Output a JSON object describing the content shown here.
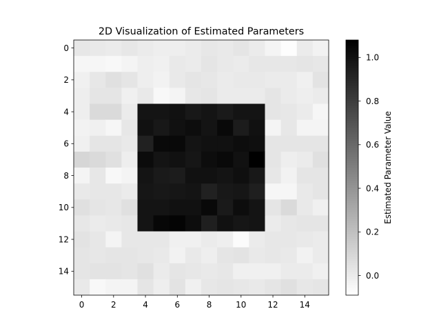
{
  "chart_data": {
    "type": "heatmap",
    "title": "2D Visualization of Estimated Parameters",
    "xlabel": "",
    "ylabel": "",
    "colormap": "gray_r",
    "vmin": -0.09,
    "vmax": 1.08,
    "x_ticks": [
      0,
      2,
      4,
      6,
      8,
      10,
      12,
      14
    ],
    "y_ticks": [
      0,
      2,
      4,
      6,
      8,
      10,
      12,
      14
    ],
    "colorbar": {
      "label": "Estimated Parameter Value",
      "ticks": [
        0.0,
        0.2,
        0.4,
        0.6,
        0.8,
        1.0
      ],
      "tick_labels": [
        "0.0",
        "0.2",
        "0.4",
        "0.6",
        "0.8",
        "1.0"
      ]
    },
    "rows": 16,
    "cols": 16,
    "values": [
      [
        0.02,
        0.01,
        0.0,
        0.02,
        0.0,
        -0.01,
        -0.01,
        0.0,
        0.02,
        0.01,
        0.03,
        0.0,
        -0.04,
        -0.08,
        0.0,
        -0.03
      ],
      [
        -0.05,
        -0.05,
        -0.06,
        -0.04,
        -0.01,
        -0.02,
        0.01,
        0.0,
        0.03,
        0.01,
        0.0,
        0.02,
        0.02,
        0.02,
        0.03,
        0.02
      ],
      [
        -0.02,
        0.02,
        0.05,
        0.03,
        -0.01,
        -0.03,
        0.01,
        0.03,
        0.02,
        0.0,
        0.01,
        0.01,
        0.0,
        0.0,
        -0.02,
        0.04
      ],
      [
        -0.01,
        0.03,
        0.03,
        -0.02,
        0.01,
        -0.06,
        -0.04,
        0.02,
        0.03,
        0.0,
        0.0,
        0.0,
        0.03,
        0.0,
        -0.01,
        0.0
      ],
      [
        -0.01,
        0.08,
        0.08,
        0.0,
        0.99,
        0.99,
        1.0,
        0.97,
        0.99,
        0.96,
        0.99,
        0.99,
        0.03,
        0.02,
        0.0,
        -0.05
      ],
      [
        -0.03,
        -0.02,
        -0.05,
        0.02,
        1.0,
        0.97,
        1.0,
        1.02,
        0.99,
        1.04,
        0.95,
        1.0,
        -0.04,
        0.02,
        -0.04,
        -0.04
      ],
      [
        -0.02,
        0.03,
        0.03,
        0.01,
        0.93,
        1.04,
        1.04,
        0.99,
        1.0,
        1.0,
        1.02,
        1.01,
        0.03,
        0.03,
        0.03,
        0.03
      ],
      [
        0.1,
        0.08,
        0.05,
        -0.01,
        1.03,
        0.99,
        1.0,
        0.98,
        1.02,
        1.04,
        1.0,
        1.08,
        0.03,
        -0.01,
        0.0,
        0.05
      ],
      [
        -0.04,
        0.02,
        -0.06,
        -0.04,
        0.99,
        0.96,
        0.95,
        1.0,
        1.0,
        0.99,
        1.01,
        0.97,
        0.02,
        -0.03,
        0.03,
        0.03
      ],
      [
        0.01,
        0.02,
        0.02,
        0.0,
        0.98,
        0.97,
        0.98,
        0.99,
        0.93,
        0.97,
        0.98,
        0.94,
        -0.05,
        -0.05,
        0.01,
        0.03
      ],
      [
        0.05,
        0.03,
        0.02,
        0.05,
        0.99,
        0.99,
        1.0,
        1.0,
        1.04,
        0.96,
        1.02,
        0.99,
        0.03,
        0.08,
        0.01,
        -0.02
      ],
      [
        0.02,
        0.0,
        0.01,
        0.02,
        0.99,
        1.05,
        1.06,
        1.02,
        0.94,
        1.0,
        0.98,
        0.99,
        0.0,
        0.02,
        0.03,
        0.03
      ],
      [
        0.04,
        0.02,
        -0.04,
        0.02,
        0.02,
        0.02,
        -0.02,
        -0.02,
        0.0,
        -0.01,
        -0.07,
        0.0,
        0.02,
        0.02,
        0.01,
        0.0
      ],
      [
        0.03,
        0.02,
        0.03,
        0.03,
        0.02,
        0.01,
        -0.03,
        0.01,
        -0.01,
        0.03,
        0.04,
        0.01,
        0.02,
        0.01,
        -0.03,
        0.0
      ],
      [
        0.03,
        0.04,
        0.04,
        0.03,
        0.05,
        0.0,
        0.03,
        0.02,
        0.01,
        0.02,
        -0.02,
        -0.02,
        -0.02,
        0.0,
        0.0,
        -0.02
      ],
      [
        0.01,
        -0.06,
        -0.04,
        -0.04,
        0.03,
        -0.01,
        0.04,
        -0.02,
        0.02,
        0.03,
        0.02,
        0.01,
        0.03,
        0.05,
        0.02,
        0.03
      ]
    ]
  }
}
